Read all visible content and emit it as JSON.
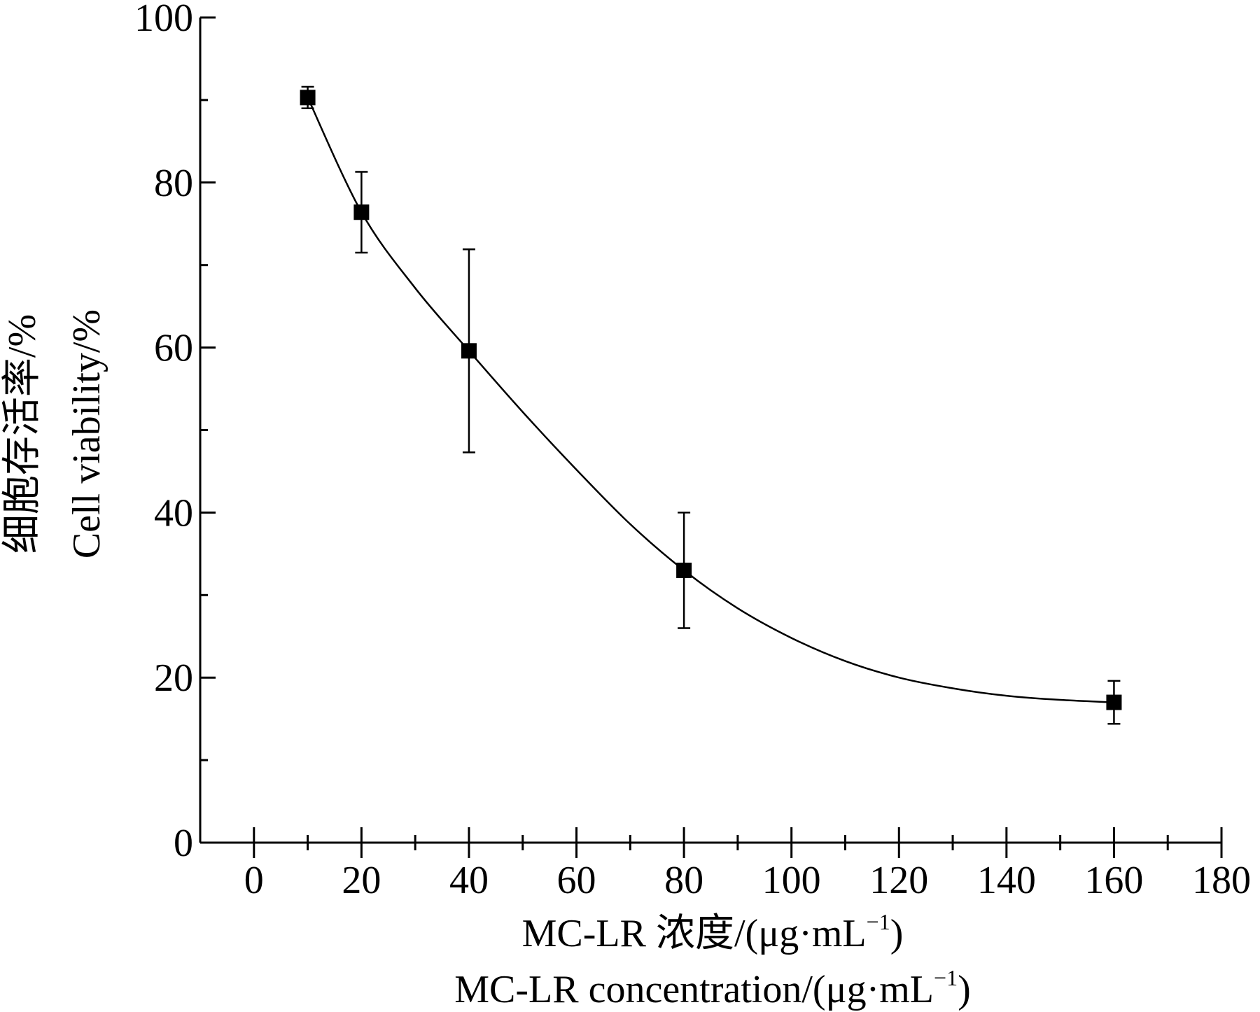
{
  "chart_data": {
    "type": "scatter",
    "title": "",
    "xlabel_cn": "MC-LR 浓度/(μg·mL",
    "xlabel_en": "MC-LR concentration/(μg·mL",
    "xlabel_unit_exp": "−1",
    "xlabel_close": ")",
    "ylabel_cn": "细胞存活率/%",
    "ylabel_en": "Cell viability/%",
    "xlim": [
      -10,
      180
    ],
    "ylim": [
      0,
      100
    ],
    "x_ticks": [
      0,
      20,
      40,
      60,
      80,
      100,
      120,
      140,
      160,
      180
    ],
    "x_minor_ticks": [
      10,
      30,
      50,
      70,
      90,
      110,
      130,
      150,
      170
    ],
    "y_ticks": [
      0,
      20,
      40,
      60,
      80,
      100
    ],
    "y_minor_ticks": [
      10,
      30,
      50,
      70,
      90
    ],
    "x": [
      10,
      20,
      40,
      80,
      160
    ],
    "y": [
      90.3,
      76.4,
      59.6,
      33.0,
      17.0
    ],
    "error": [
      1.3,
      4.9,
      12.3,
      7.0,
      2.6
    ],
    "fit_curve": {
      "x": [
        10,
        20,
        30,
        40,
        50,
        60,
        70,
        80,
        90,
        100,
        110,
        120,
        130,
        140,
        150,
        160
      ],
      "y": [
        90.3,
        76.4,
        67.2,
        59.6,
        52.2,
        45.2,
        38.6,
        33.0,
        28.4,
        24.8,
        22.0,
        20.0,
        18.7,
        17.8,
        17.3,
        17.0
      ]
    },
    "grid": false,
    "legend": "none",
    "marker": "square",
    "colors": {
      "line": "#000000",
      "marker": "#000000"
    }
  }
}
